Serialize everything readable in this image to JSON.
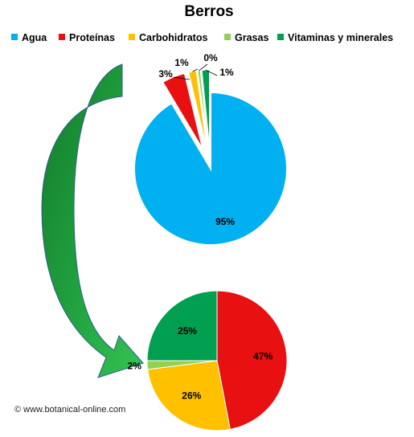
{
  "chart_data": [
    {
      "type": "pie",
      "title": "Berros",
      "legend": {
        "placement": "top",
        "entries": [
          {
            "label": "Agua",
            "color": "#00B0F0"
          },
          {
            "label": "Proteínas",
            "color": "#E81010"
          },
          {
            "label": "Carbohidratos",
            "color": "#FFC000"
          },
          {
            "label": "Grasas",
            "color": "#92D050"
          },
          {
            "label": "Vitaminas y minerales",
            "color": "#00A050"
          }
        ]
      },
      "categories": [
        "Agua",
        "Proteínas",
        "Carbohidratos",
        "Grasas",
        "Vitaminas y minerales"
      ],
      "values": [
        95,
        3,
        1,
        0,
        1
      ],
      "data_labels": [
        "95%",
        "3%",
        "1%",
        "0%",
        "1%"
      ],
      "exploded": [
        "Proteínas",
        "Carbohidratos",
        "Grasas",
        "Vitaminas y minerales"
      ]
    },
    {
      "type": "pie",
      "categories": [
        "Proteínas",
        "Carbohidratos",
        "Grasas",
        "Vitaminas y minerales"
      ],
      "values": [
        47,
        26,
        2,
        25
      ],
      "data_labels": [
        "47%",
        "26%",
        "2%",
        "25%"
      ]
    }
  ],
  "colors": {
    "Agua": "#00B0F0",
    "Proteínas": "#E81010",
    "Carbohidratos": "#FFC000",
    "Grasas": "#92D050",
    "Vitaminas y minerales": "#00A050",
    "arrow": "#1E9E3E"
  },
  "watermark": "© www.botanical-online.com"
}
